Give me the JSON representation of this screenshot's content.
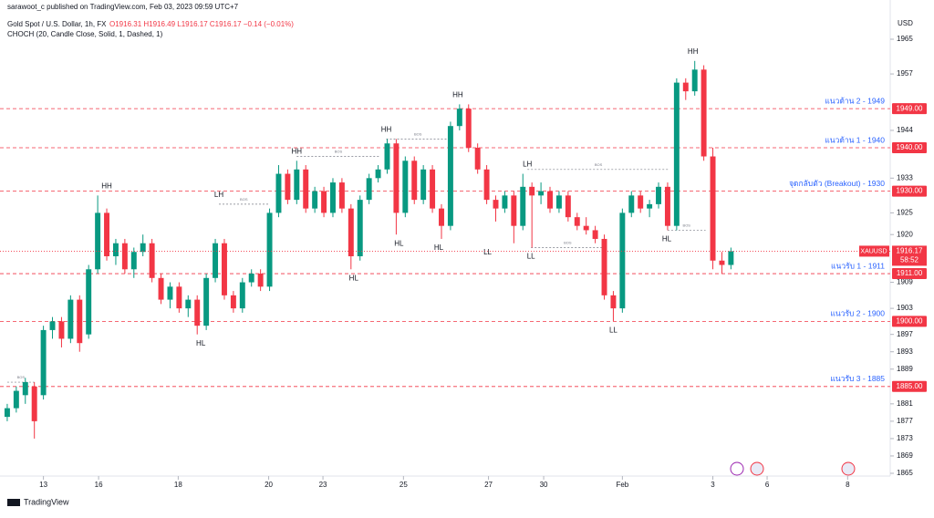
{
  "header": {
    "published": "sarawoot_c published on TradingView.com, Feb 03, 2023 09:59 UTC+7",
    "symbol": "Gold Spot / U.S. Dollar, 1h, FX",
    "ohlc": "O1916.31 H1916.49 L1916.17 C1916.17 −0.14 (−0.01%)",
    "indicator": "CHOCH (20, Candle Close, Solid, 1, Dashed, 1)",
    "footer": "TradingView"
  },
  "chart_data": {
    "type": "candlestick",
    "currency": "USD",
    "up_color": "#089981",
    "down_color": "#f23645",
    "xlim": [
      -0.8,
      96.7
    ],
    "ylim": [
      1865,
      1965
    ],
    "yticks": [
      1965,
      1957,
      1944,
      1933,
      1925,
      1920,
      1909,
      1903,
      1897,
      1893,
      1889,
      1881,
      1877,
      1873,
      1869,
      1865
    ],
    "xticks": [
      {
        "value": 4,
        "label": "13"
      },
      {
        "value": 10.1,
        "label": "16"
      },
      {
        "value": 18.9,
        "label": "18"
      },
      {
        "value": 28.9,
        "label": "20"
      },
      {
        "value": 34.9,
        "label": "23"
      },
      {
        "value": 43.8,
        "label": "25"
      },
      {
        "value": 53.2,
        "label": "27"
      },
      {
        "value": 59.3,
        "label": "30"
      },
      {
        "value": 68,
        "label": "Feb"
      },
      {
        "value": 78,
        "label": "3"
      },
      {
        "value": 84,
        "label": "6"
      },
      {
        "value": 92.9,
        "label": "8"
      }
    ],
    "candles": [
      [
        1878,
        1881,
        1877,
        1880
      ],
      [
        1880,
        1885,
        1879,
        1884
      ],
      [
        1883,
        1887,
        1881,
        1886
      ],
      [
        1885,
        1886,
        1873,
        1877
      ],
      [
        1883,
        1899,
        1882,
        1898
      ],
      [
        1898,
        1901,
        1896,
        1900
      ],
      [
        1900,
        1901,
        1894,
        1896
      ],
      [
        1896,
        1906,
        1895,
        1905
      ],
      [
        1905,
        1906,
        1893,
        1895
      ],
      [
        1897,
        1913,
        1896,
        1912
      ],
      [
        1912,
        1929,
        1911,
        1925
      ],
      [
        1925,
        1926,
        1914,
        1915
      ],
      [
        1915,
        1919,
        1913,
        1918
      ],
      [
        1918,
        1919,
        1911,
        1912
      ],
      [
        1912,
        1917,
        1910,
        1916
      ],
      [
        1916,
        1920,
        1915,
        1918
      ],
      [
        1918,
        1919,
        1909,
        1910
      ],
      [
        1910,
        1911,
        1904,
        1905
      ],
      [
        1905,
        1909,
        1903,
        1908
      ],
      [
        1908,
        1909,
        1902,
        1903
      ],
      [
        1903,
        1906,
        1901,
        1905
      ],
      [
        1905,
        1906,
        1897,
        1899
      ],
      [
        1899,
        1911,
        1898,
        1910
      ],
      [
        1910,
        1919,
        1909,
        1918
      ],
      [
        1918,
        1919,
        1905,
        1906
      ],
      [
        1906,
        1907,
        1902,
        1903
      ],
      [
        1903,
        1910,
        1902,
        1909
      ],
      [
        1909,
        1912,
        1908,
        1911
      ],
      [
        1911,
        1912,
        1907,
        1908
      ],
      [
        1908,
        1926,
        1907,
        1925
      ],
      [
        1925,
        1936,
        1924,
        1934
      ],
      [
        1934,
        1935,
        1927,
        1928
      ],
      [
        1928,
        1937,
        1927,
        1935
      ],
      [
        1935,
        1936,
        1925,
        1926
      ],
      [
        1926,
        1931,
        1925,
        1930
      ],
      [
        1930,
        1931,
        1924,
        1925
      ],
      [
        1925,
        1933,
        1924,
        1932
      ],
      [
        1932,
        1933,
        1925,
        1926
      ],
      [
        1926,
        1927,
        1912,
        1915
      ],
      [
        1915,
        1929,
        1914,
        1928
      ],
      [
        1928,
        1934,
        1927,
        1933
      ],
      [
        1933,
        1936,
        1932,
        1935
      ],
      [
        1935,
        1942,
        1934,
        1941
      ],
      [
        1941,
        1942,
        1920,
        1925
      ],
      [
        1925,
        1938,
        1924,
        1937
      ],
      [
        1937,
        1938,
        1927,
        1928
      ],
      [
        1928,
        1936,
        1927,
        1935
      ],
      [
        1935,
        1936,
        1925,
        1926
      ],
      [
        1926,
        1927,
        1919,
        1922
      ],
      [
        1922,
        1946,
        1921,
        1945
      ],
      [
        1945,
        1950,
        1944,
        1949
      ],
      [
        1949,
        1950,
        1939,
        1940
      ],
      [
        1940,
        1941,
        1934,
        1935
      ],
      [
        1935,
        1936,
        1927,
        1928
      ],
      [
        1928,
        1929,
        1923,
        1926
      ],
      [
        1926,
        1930,
        1925,
        1929
      ],
      [
        1929,
        1930,
        1918,
        1922
      ],
      [
        1922,
        1934,
        1921,
        1931
      ],
      [
        1931,
        1932,
        1917,
        1929
      ],
      [
        1929,
        1932,
        1927,
        1930
      ],
      [
        1930,
        1931,
        1925,
        1926
      ],
      [
        1926,
        1930,
        1925,
        1929
      ],
      [
        1929,
        1930,
        1923,
        1924
      ],
      [
        1924,
        1925,
        1921,
        1922
      ],
      [
        1922,
        1924,
        1920,
        1921
      ],
      [
        1921,
        1922,
        1918,
        1919
      ],
      [
        1919,
        1920,
        1905,
        1906
      ],
      [
        1906,
        1907,
        1900,
        1903
      ],
      [
        1903,
        1926,
        1902,
        1925
      ],
      [
        1925,
        1930,
        1924,
        1929
      ],
      [
        1929,
        1930,
        1925,
        1926
      ],
      [
        1926,
        1928,
        1924,
        1927
      ],
      [
        1927,
        1932,
        1926,
        1931
      ],
      [
        1931,
        1932,
        1921,
        1922
      ],
      [
        1922,
        1956,
        1921,
        1955
      ],
      [
        1955,
        1956,
        1951,
        1953
      ],
      [
        1953,
        1960,
        1952,
        1958
      ],
      [
        1958,
        1959,
        1937,
        1938
      ],
      [
        1938,
        1940,
        1912,
        1914
      ],
      [
        1914,
        1916,
        1911,
        1913
      ],
      [
        1913,
        1917,
        1912,
        1916.17
      ]
    ],
    "structure_labels": [
      {
        "text": "HH",
        "x": 11,
        "y": 1929
      },
      {
        "text": "HL",
        "x": 21.4,
        "y": 1897
      },
      {
        "text": "LH",
        "x": 23.4,
        "y": 1927
      },
      {
        "text": "HL",
        "x": 38.3,
        "y": 1912
      },
      {
        "text": "HH",
        "x": 32,
        "y": 1937
      },
      {
        "text": "HH",
        "x": 41.9,
        "y": 1942
      },
      {
        "text": "HL",
        "x": 43.3,
        "y": 1920
      },
      {
        "text": "HL",
        "x": 47.7,
        "y": 1919
      },
      {
        "text": "HH",
        "x": 49.8,
        "y": 1950
      },
      {
        "text": "LL",
        "x": 53.1,
        "y": 1918
      },
      {
        "text": "LH",
        "x": 57.5,
        "y": 1934
      },
      {
        "text": "LL",
        "x": 57.9,
        "y": 1917
      },
      {
        "text": "LL",
        "x": 67,
        "y": 1900
      },
      {
        "text": "HL",
        "x": 72.9,
        "y": 1921
      },
      {
        "text": "HH",
        "x": 75.8,
        "y": 1960
      }
    ],
    "bos": [
      {
        "text": "BOS",
        "from": 0,
        "to": 3,
        "y": 1886
      },
      {
        "text": "BOS",
        "from": 23.4,
        "to": 28.9,
        "y": 1927
      },
      {
        "text": "BOS",
        "from": 32,
        "to": 41.2,
        "y": 1938
      },
      {
        "text": "BOS",
        "from": 41.9,
        "to": 48.9,
        "y": 1942
      },
      {
        "text": "BOS",
        "from": 57.5,
        "to": 73.2,
        "y": 1935
      },
      {
        "text": "BOS",
        "from": 57.9,
        "to": 66,
        "y": 1917
      },
      {
        "text": "BOS",
        "from": 73,
        "to": 77.2,
        "y": 1921
      }
    ],
    "levels": [
      {
        "name": "แนวต้าน 2 - 1949",
        "tag": "1949.00",
        "value": 1949
      },
      {
        "name": "แนวต้าน 1 - 1940",
        "tag": "1940.00",
        "value": 1940
      },
      {
        "name": "จุดกลับตัว (Breakout) - 1930",
        "tag": "1930.00",
        "value": 1930
      },
      {
        "name": "แนวรับ 1 - 1911",
        "tag": "1911.00",
        "value": 1911
      },
      {
        "name": "แนวรับ 2 - 1900",
        "tag": "1900.00",
        "value": 1900
      },
      {
        "name": "แนวรับ 3 - 1885",
        "tag": "1885.00",
        "value": 1885
      }
    ],
    "last_price": {
      "symbol": "XAUUSD",
      "value": 1916.17,
      "countdown": "58:52"
    }
  }
}
